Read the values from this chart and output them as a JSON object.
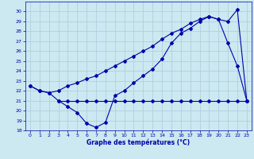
{
  "background_color": "#cce8f0",
  "grid_color": "#aaccdd",
  "line_color": "#0000aa",
  "xlabel": "Graphe des températures (°C)",
  "ylim": [
    18,
    31
  ],
  "xlim": [
    -0.5,
    23.5
  ],
  "yticks": [
    18,
    19,
    20,
    21,
    22,
    23,
    24,
    25,
    26,
    27,
    28,
    29,
    30
  ],
  "xticks": [
    0,
    1,
    2,
    3,
    4,
    5,
    6,
    7,
    8,
    9,
    10,
    11,
    12,
    13,
    14,
    15,
    16,
    17,
    18,
    19,
    20,
    21,
    22,
    23
  ],
  "curve1_x": [
    0,
    1,
    2,
    3,
    4,
    5,
    6,
    7,
    8,
    9,
    10,
    11,
    12,
    13,
    14,
    15,
    16,
    17,
    18,
    19,
    20,
    21,
    22,
    23
  ],
  "curve1_y": [
    22.5,
    22.0,
    21.8,
    21.0,
    20.4,
    19.8,
    18.7,
    18.3,
    18.8,
    21.5,
    22.0,
    22.8,
    23.5,
    24.2,
    25.2,
    26.8,
    27.8,
    28.3,
    29.0,
    29.5,
    29.2,
    29.0,
    30.2,
    21.0
  ],
  "curve2_x": [
    0,
    1,
    2,
    3,
    4,
    5,
    6,
    7,
    8,
    9,
    10,
    11,
    12,
    13,
    14,
    15,
    16,
    17,
    18,
    19,
    20,
    21,
    22,
    23
  ],
  "curve2_y": [
    22.5,
    22.0,
    21.8,
    22.0,
    22.5,
    22.8,
    23.2,
    23.5,
    24.0,
    24.5,
    25.0,
    25.5,
    26.0,
    26.5,
    27.2,
    27.8,
    28.2,
    28.8,
    29.2,
    29.5,
    29.2,
    26.8,
    24.5,
    21.0
  ],
  "curve3_x": [
    3,
    4,
    5,
    6,
    7,
    8,
    9,
    10,
    11,
    12,
    13,
    14,
    15,
    16,
    17,
    18,
    19,
    20,
    21,
    22,
    23
  ],
  "curve3_y": [
    21.0,
    21.0,
    21.0,
    21.0,
    21.0,
    21.0,
    21.0,
    21.0,
    21.0,
    21.0,
    21.0,
    21.0,
    21.0,
    21.0,
    21.0,
    21.0,
    21.0,
    21.0,
    21.0,
    21.0,
    21.0
  ]
}
